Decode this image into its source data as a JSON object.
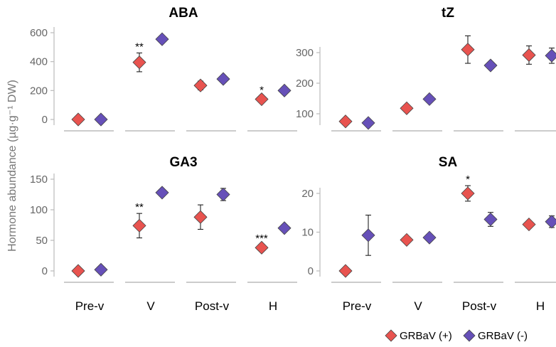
{
  "y_axis_label": "Hormone abundance (µg·g⁻¹ DW)",
  "colors": {
    "plus": "#e8534f",
    "minus": "#6650b8",
    "axis": "#bbbbbb"
  },
  "legend": [
    {
      "label": "GRBaV (+)",
      "color": "#e8534f"
    },
    {
      "label": "GRBaV (-)",
      "color": "#6650b8"
    }
  ],
  "chart_data": [
    {
      "type": "scatter",
      "title": "ABA",
      "categories": [
        "Pre-v",
        "V",
        "Post-v",
        "H"
      ],
      "yticks": [
        0,
        200,
        400,
        600
      ],
      "ylim": [
        -40,
        640
      ],
      "series": [
        {
          "name": "GRBaV (+)",
          "values": [
            0,
            395,
            235,
            140
          ],
          "errors": [
            0,
            65,
            30,
            20
          ]
        },
        {
          "name": "GRBaV (-)",
          "values": [
            0,
            555,
            280,
            200
          ],
          "errors": [
            0,
            15,
            15,
            15
          ]
        }
      ],
      "annotations": [
        "",
        "**",
        "",
        "*"
      ]
    },
    {
      "type": "scatter",
      "title": "tZ",
      "categories": [
        "Pre-v",
        "V",
        "Post-v",
        "H"
      ],
      "yticks": [
        100,
        200,
        300
      ],
      "ylim": [
        45,
        355
      ],
      "series": [
        {
          "name": "GRBaV (+)",
          "values": [
            75,
            118,
            310,
            292
          ],
          "errors": [
            8,
            10,
            45,
            30
          ]
        },
        {
          "name": "GRBaV (-)",
          "values": [
            70,
            148,
            258,
            290
          ],
          "errors": [
            6,
            8,
            10,
            25
          ]
        }
      ],
      "annotations": [
        "",
        "",
        "",
        ""
      ]
    },
    {
      "type": "scatter",
      "title": "GA3",
      "categories": [
        "Pre-v",
        "V",
        "Post-v",
        "H"
      ],
      "yticks": [
        0,
        50,
        100,
        150
      ],
      "ylim": [
        -10,
        155
      ],
      "series": [
        {
          "name": "GRBaV (+)",
          "values": [
            0,
            74,
            88,
            38
          ],
          "errors": [
            0,
            20,
            20,
            5
          ]
        },
        {
          "name": "GRBaV (-)",
          "values": [
            2,
            128,
            125,
            70
          ],
          "errors": [
            0,
            3,
            10,
            3
          ]
        }
      ],
      "annotations": [
        "",
        "**",
        "",
        "***"
      ]
    },
    {
      "type": "scatter",
      "title": "SA",
      "categories": [
        "Pre-v",
        "V",
        "Post-v",
        "H"
      ],
      "yticks": [
        0,
        10,
        20
      ],
      "ylim": [
        -2.5,
        25
      ],
      "series": [
        {
          "name": "GRBaV (+)",
          "values": [
            0,
            8,
            20,
            12
          ],
          "errors": [
            0,
            0.7,
            2,
            0.7
          ]
        },
        {
          "name": "GRBaV (-)",
          "values": [
            9.2,
            8.6,
            13.3,
            12.7
          ],
          "errors": [
            5.2,
            0.8,
            1.8,
            1.5
          ]
        }
      ],
      "annotations": [
        "",
        "",
        "*",
        ""
      ]
    }
  ]
}
